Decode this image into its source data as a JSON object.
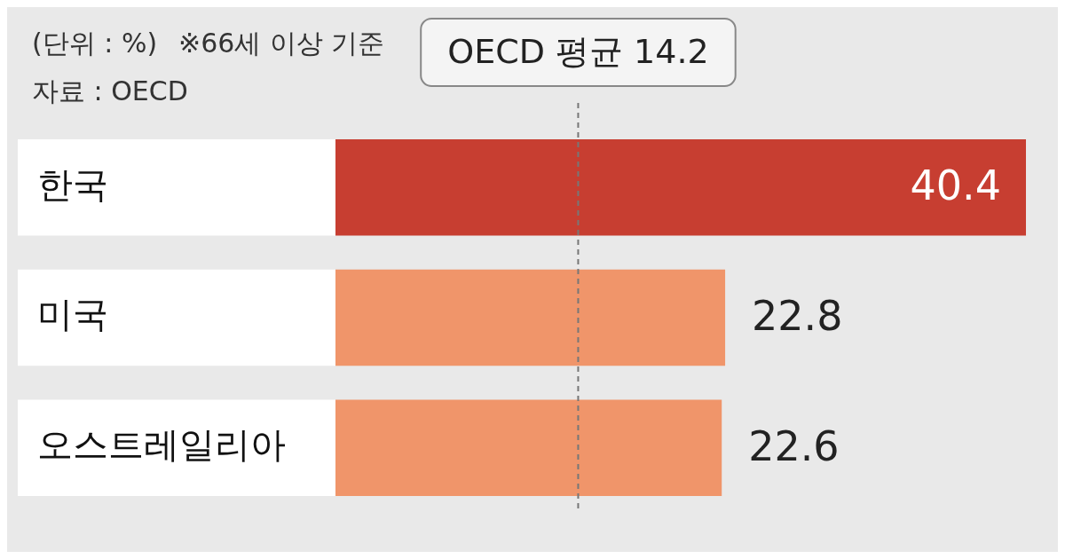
{
  "chart_data": {
    "type": "bar",
    "orientation": "horizontal",
    "categories": [
      "한국",
      "미국",
      "오스트레일리아"
    ],
    "values": [
      40.4,
      22.8,
      22.6
    ],
    "colors": [
      "#c73e31",
      "#f0956a",
      "#f0956a"
    ],
    "xlim": [
      0,
      40.4
    ],
    "data_labels": true,
    "legend": false,
    "tick_labels": "y",
    "ref_lines": [
      {
        "axis": "x",
        "value": 14.2,
        "label": "OECD 평균 14.2",
        "line_style": "dashed",
        "color": "#777777"
      }
    ],
    "annotations": [
      "(단위 : %)",
      "※66세 이상 기준",
      "자료 : OECD"
    ]
  }
}
